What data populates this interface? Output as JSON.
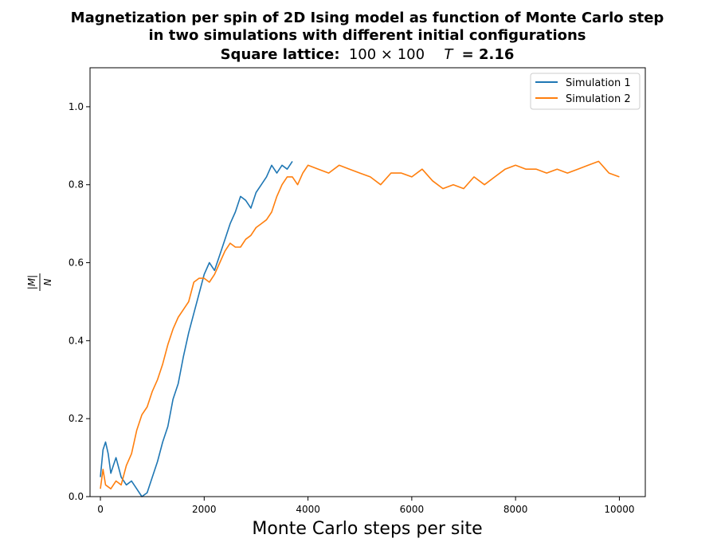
{
  "chart_data": {
    "type": "line",
    "title": [
      "Magnetization per spin of 2D Ising model as function of Monte Carlo step",
      "in two simulations with different initial configurations"
    ],
    "subtitle": {
      "prefix": "Square lattice:",
      "lattice": "100 × 100",
      "temperature_symbol": "T",
      "temperature_value": "= 2.16"
    },
    "xlabel": "Monte Carlo steps per site",
    "ylabel": {
      "numerator": "|M|",
      "denominator": "N"
    },
    "xlim": [
      -200,
      10500
    ],
    "ylim": [
      0,
      1.1
    ],
    "xticks": [
      0,
      2000,
      4000,
      6000,
      8000,
      10000
    ],
    "xtick_labels": [
      "0",
      "2000",
      "4000",
      "6000",
      "8000",
      "10000"
    ],
    "yticks": [
      0,
      0.2,
      0.4,
      0.6,
      0.8,
      1.0
    ],
    "ytick_labels": [
      "0.0",
      "0.2",
      "0.4",
      "0.6",
      "0.8",
      "1.0"
    ],
    "grid": false,
    "legend": "top-right",
    "series": [
      {
        "name": "Simulation 1",
        "color": "#1f77b4",
        "x": [
          0,
          50,
          100,
          150,
          200,
          250,
          300,
          400,
          500,
          600,
          700,
          800,
          900,
          1000,
          1100,
          1200,
          1300,
          1400,
          1500,
          1600,
          1700,
          1800,
          1900,
          2000,
          2100,
          2200,
          2300,
          2400,
          2500,
          2600,
          2700,
          2800,
          2900,
          3000,
          3100,
          3200,
          3300,
          3400,
          3500,
          3600,
          3700
        ],
        "y": [
          0.05,
          0.12,
          0.14,
          0.11,
          0.06,
          0.08,
          0.1,
          0.05,
          0.03,
          0.04,
          0.02,
          0.0,
          0.01,
          0.05,
          0.09,
          0.14,
          0.18,
          0.25,
          0.29,
          0.36,
          0.42,
          0.47,
          0.52,
          0.57,
          0.6,
          0.58,
          0.62,
          0.66,
          0.7,
          0.73,
          0.77,
          0.76,
          0.74,
          0.78,
          0.8,
          0.82,
          0.85,
          0.83,
          0.85,
          0.84,
          0.86
        ]
      },
      {
        "name": "Simulation 2",
        "color": "#ff7f0e",
        "x": [
          0,
          50,
          100,
          200,
          300,
          400,
          500,
          600,
          700,
          800,
          900,
          1000,
          1100,
          1200,
          1300,
          1400,
          1500,
          1600,
          1700,
          1800,
          1900,
          2000,
          2100,
          2200,
          2300,
          2400,
          2500,
          2600,
          2700,
          2800,
          2900,
          3000,
          3100,
          3200,
          3300,
          3400,
          3500,
          3600,
          3700,
          3800,
          3900,
          4000,
          4200,
          4400,
          4600,
          4800,
          5000,
          5200,
          5400,
          5600,
          5800,
          6000,
          6200,
          6400,
          6600,
          6800,
          7000,
          7200,
          7400,
          7600,
          7800,
          8000,
          8200,
          8400,
          8600,
          8800,
          9000,
          9200,
          9400,
          9600,
          9800,
          10000
        ],
        "y": [
          0.02,
          0.07,
          0.03,
          0.02,
          0.04,
          0.03,
          0.08,
          0.11,
          0.17,
          0.21,
          0.23,
          0.27,
          0.3,
          0.34,
          0.39,
          0.43,
          0.46,
          0.48,
          0.5,
          0.55,
          0.56,
          0.56,
          0.55,
          0.57,
          0.6,
          0.63,
          0.65,
          0.64,
          0.64,
          0.66,
          0.67,
          0.69,
          0.7,
          0.71,
          0.73,
          0.77,
          0.8,
          0.82,
          0.82,
          0.8,
          0.83,
          0.85,
          0.84,
          0.83,
          0.85,
          0.84,
          0.83,
          0.82,
          0.8,
          0.83,
          0.83,
          0.82,
          0.84,
          0.81,
          0.79,
          0.8,
          0.79,
          0.82,
          0.8,
          0.82,
          0.84,
          0.85,
          0.84,
          0.84,
          0.83,
          0.84,
          0.83,
          0.84,
          0.85,
          0.86,
          0.83,
          0.82
        ]
      }
    ]
  }
}
